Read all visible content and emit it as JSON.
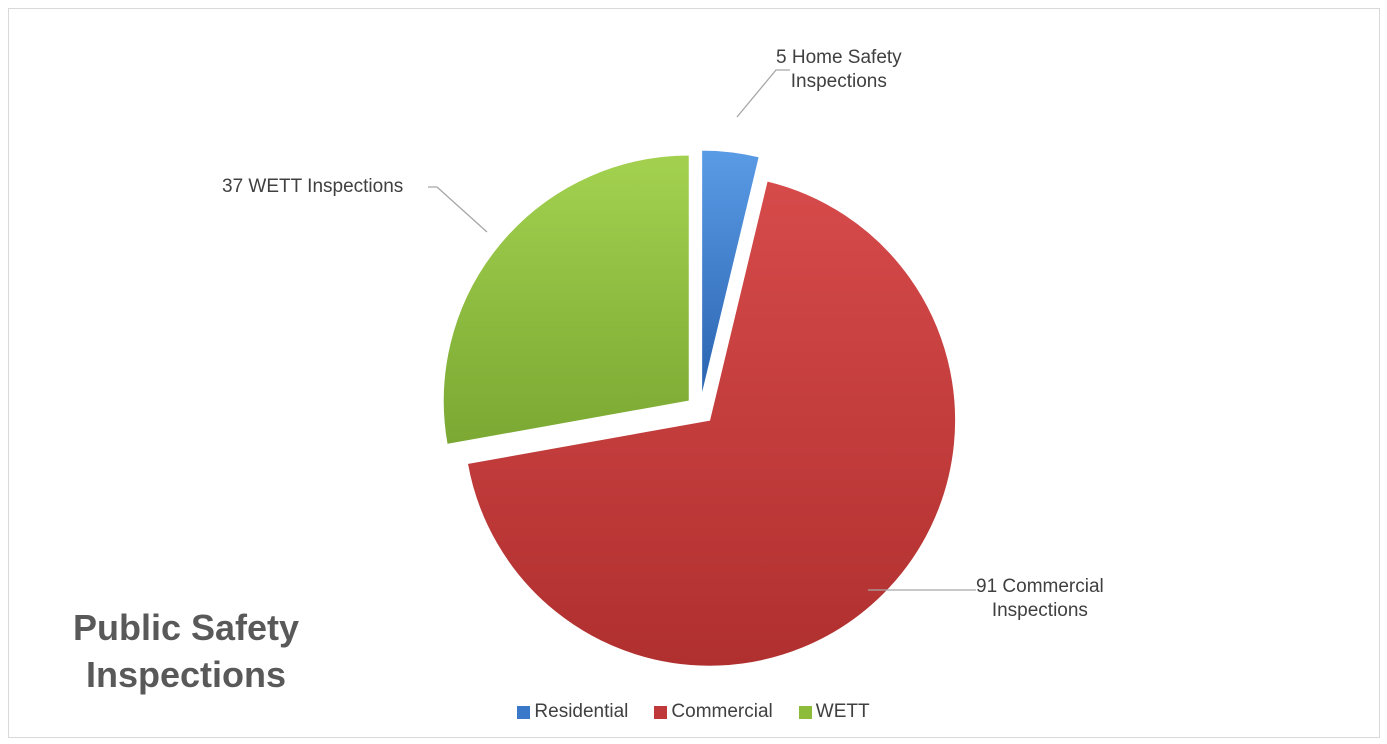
{
  "chart_data": {
    "type": "pie",
    "title_lines": [
      "Public Safety",
      "Inspections"
    ],
    "categories": [
      "Residential",
      "Commercial",
      "WETT"
    ],
    "values": [
      5,
      91,
      37
    ],
    "colors": [
      "#3a78c9",
      "#c0393a",
      "#8cbc3a"
    ],
    "data_labels": [
      [
        "5  Home Safety",
        "Inspections"
      ],
      [
        "91 Commercial",
        "Inspections"
      ],
      [
        "37  WETT Inspections"
      ]
    ],
    "exploded": true,
    "legend_position": "bottom"
  }
}
